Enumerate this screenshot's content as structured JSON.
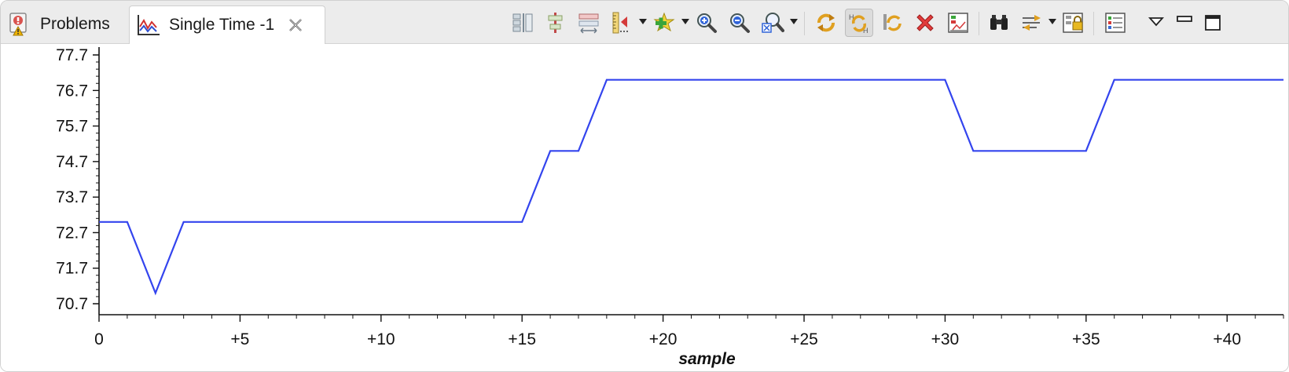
{
  "tabs": [
    {
      "label": "Problems",
      "icon": "problems-icon",
      "active": false
    },
    {
      "label": "Single Time -1",
      "icon": "time-chart-icon",
      "active": true
    }
  ],
  "toolbar": {
    "buttons": [
      {
        "name": "layout-columns-icon"
      },
      {
        "name": "center-align-icon"
      },
      {
        "name": "stretch-layout-icon"
      },
      {
        "name": "marker-ruler-icon",
        "dropdown": true
      },
      {
        "name": "add-series-icon",
        "dropdown": true
      },
      {
        "name": "zoom-in-icon"
      },
      {
        "name": "zoom-out-icon"
      },
      {
        "name": "zoom-select-icon",
        "dropdown": true
      },
      {
        "name": "refresh-icon"
      },
      {
        "name": "sync-horizontal-icon",
        "pressed": true
      },
      {
        "name": "sync-vertical-icon"
      },
      {
        "name": "delete-icon"
      },
      {
        "name": "chart-properties-icon"
      },
      {
        "name": "binoculars-icon"
      },
      {
        "name": "filter-arrows-icon",
        "dropdown": true
      },
      {
        "name": "lock-icon"
      },
      {
        "name": "list-settings-icon"
      },
      {
        "name": "view-menu-icon"
      },
      {
        "name": "minimize-icon"
      },
      {
        "name": "maximize-icon"
      }
    ]
  },
  "chart_data": {
    "type": "line",
    "xlabel": "sample",
    "ylabel": "",
    "xlim": [
      0,
      42
    ],
    "ylim": [
      70.7,
      77.7
    ],
    "x_ticks": [
      0,
      5,
      10,
      15,
      20,
      25,
      30,
      35,
      40
    ],
    "x_tick_labels": [
      "0",
      "+5",
      "+10",
      "+15",
      "+20",
      "+25",
      "+30",
      "+35",
      "+40"
    ],
    "y_ticks": [
      70.7,
      71.7,
      72.7,
      73.7,
      74.7,
      75.7,
      76.7,
      77.7
    ],
    "y_tick_labels": [
      "70.7",
      "71.7",
      "72.7",
      "73.7",
      "74.7",
      "75.7",
      "76.7",
      "77.7"
    ],
    "grid": false,
    "series": [
      {
        "color": "#3344ee",
        "x": [
          0,
          1,
          2,
          3,
          15,
          16,
          17,
          18,
          30,
          31,
          35,
          36,
          42
        ],
        "y": [
          73.0,
          73.0,
          71.0,
          73.0,
          73.0,
          75.0,
          75.0,
          77.0,
          77.0,
          75.0,
          75.0,
          77.0,
          77.0
        ]
      }
    ]
  }
}
